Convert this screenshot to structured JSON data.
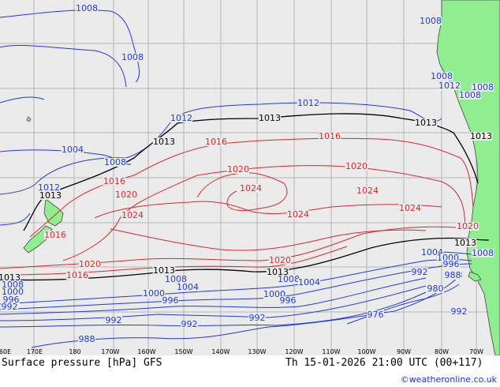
{
  "map": {
    "title": "Surface pressure [hPa] GFS",
    "valid_time": "Th 15-01-2026 21:00 UTC (00+117)",
    "credit": "©weatheronline.co.uk",
    "colors": {
      "ocean": "#ebebeb",
      "land": "#90ee90",
      "grid": "#b4b4b4",
      "low": "#1e3cdc",
      "mid": "#000000",
      "high": "#dc2828"
    },
    "lon_ticks": [
      "160E",
      "170E",
      "180",
      "170W",
      "160W",
      "150W",
      "140W",
      "130W",
      "120W",
      "110W",
      "100W",
      "90W",
      "80W",
      "70W"
    ],
    "isobar_labels": [
      {
        "text": "1008",
        "band": "low"
      },
      {
        "text": "1008",
        "band": "low"
      },
      {
        "text": "1008",
        "band": "low"
      },
      {
        "text": "1008",
        "band": "low"
      },
      {
        "text": "1012",
        "band": "low"
      },
      {
        "text": "1008",
        "band": "low"
      },
      {
        "text": "1004",
        "band": "low"
      },
      {
        "text": "1008",
        "band": "low"
      },
      {
        "text": "1012",
        "band": "low"
      },
      {
        "text": "1012",
        "band": "low"
      },
      {
        "text": "1012",
        "band": "low"
      },
      {
        "text": "1008",
        "band": "low"
      },
      {
        "text": "1013",
        "band": "mid"
      },
      {
        "text": "1013",
        "band": "mid"
      },
      {
        "text": "1013",
        "band": "mid"
      },
      {
        "text": "1013",
        "band": "mid"
      },
      {
        "text": "1013",
        "band": "mid"
      },
      {
        "text": "1016",
        "band": "high"
      },
      {
        "text": "1016",
        "band": "high"
      },
      {
        "text": "1016",
        "band": "high"
      },
      {
        "text": "1020",
        "band": "high"
      },
      {
        "text": "1020",
        "band": "high"
      },
      {
        "text": "1020",
        "band": "high"
      },
      {
        "text": "1024",
        "band": "high"
      },
      {
        "text": "1024",
        "band": "high"
      },
      {
        "text": "1024",
        "band": "high"
      },
      {
        "text": "1024",
        "band": "high"
      },
      {
        "text": "1024",
        "band": "high"
      },
      {
        "text": "1016",
        "band": "high"
      },
      {
        "text": "1020",
        "band": "high"
      },
      {
        "text": "1020",
        "band": "high"
      },
      {
        "text": "1016",
        "band": "high"
      },
      {
        "text": "1020",
        "band": "high"
      },
      {
        "text": "1013",
        "band": "mid"
      },
      {
        "text": "1013",
        "band": "mid"
      },
      {
        "text": "1013",
        "band": "mid"
      },
      {
        "text": "1013",
        "band": "mid"
      },
      {
        "text": "1008",
        "band": "low"
      },
      {
        "text": "1008",
        "band": "low"
      },
      {
        "text": "1004",
        "band": "low"
      },
      {
        "text": "1004",
        "band": "low"
      },
      {
        "text": "1000",
        "band": "low"
      },
      {
        "text": "1000",
        "band": "low"
      },
      {
        "text": "996",
        "band": "low"
      },
      {
        "text": "996",
        "band": "low"
      },
      {
        "text": "992",
        "band": "low"
      },
      {
        "text": "992",
        "band": "low"
      },
      {
        "text": "992",
        "band": "low"
      },
      {
        "text": "992",
        "band": "low"
      },
      {
        "text": "988",
        "band": "low"
      },
      {
        "text": "988",
        "band": "low"
      },
      {
        "text": "980",
        "band": "low"
      },
      {
        "text": "976",
        "band": "low"
      },
      {
        "text": "992",
        "band": "low"
      },
      {
        "text": "1004",
        "band": "low"
      },
      {
        "text": "1008",
        "band": "low"
      },
      {
        "text": "1000",
        "band": "low"
      },
      {
        "text": "996",
        "band": "low"
      },
      {
        "text": "1020",
        "band": "high"
      },
      {
        "text": "1013",
        "band": "mid"
      },
      {
        "text": "1008",
        "band": "low"
      },
      {
        "text": "1000",
        "band": "low"
      },
      {
        "text": "996",
        "band": "low"
      },
      {
        "text": "992",
        "band": "low"
      },
      {
        "text": "988",
        "band": "low"
      }
    ]
  }
}
